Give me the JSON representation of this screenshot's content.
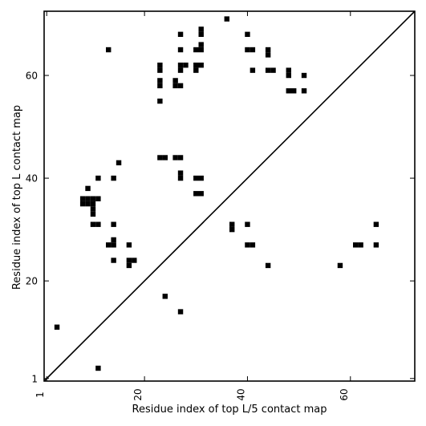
{
  "chart_data": {
    "type": "heatmap",
    "xlabel": "Residue index of top L/5 contact map",
    "ylabel": "Residue index of top L contact map",
    "xlim": [
      0.5,
      72.5
    ],
    "ylim": [
      0.5,
      72.5
    ],
    "xticks": [
      "1",
      "20",
      "40",
      "60"
    ],
    "yticks": [
      "1",
      "20",
      "40",
      "60"
    ],
    "grid": false,
    "diagonal": true,
    "cell_color": "#000000",
    "upper_left_contacts": [
      [
        36,
        71
      ],
      [
        27,
        68
      ],
      [
        31,
        68
      ],
      [
        31,
        69
      ],
      [
        40,
        68
      ],
      [
        13,
        65
      ],
      [
        27,
        65
      ],
      [
        30,
        65
      ],
      [
        31,
        65
      ],
      [
        31,
        66
      ],
      [
        40,
        65
      ],
      [
        41,
        65
      ],
      [
        44,
        64
      ],
      [
        44,
        65
      ],
      [
        23,
        61
      ],
      [
        23,
        62
      ],
      [
        27,
        61
      ],
      [
        27,
        62
      ],
      [
        28,
        62
      ],
      [
        30,
        61
      ],
      [
        30,
        62
      ],
      [
        31,
        62
      ],
      [
        41,
        61
      ],
      [
        44,
        61
      ],
      [
        45,
        61
      ],
      [
        48,
        60
      ],
      [
        48,
        61
      ],
      [
        51,
        60
      ],
      [
        23,
        58
      ],
      [
        23,
        59
      ],
      [
        26,
        58
      ],
      [
        26,
        59
      ],
      [
        27,
        58
      ],
      [
        48,
        57
      ],
      [
        49,
        57
      ],
      [
        51,
        57
      ],
      [
        23,
        55
      ],
      [
        23,
        44
      ],
      [
        24,
        44
      ],
      [
        26,
        44
      ],
      [
        27,
        44
      ],
      [
        15,
        43
      ],
      [
        11,
        40
      ],
      [
        14,
        40
      ],
      [
        27,
        40
      ],
      [
        27,
        41
      ],
      [
        30,
        40
      ],
      [
        31,
        40
      ],
      [
        30,
        37
      ],
      [
        31,
        37
      ],
      [
        9,
        38
      ],
      [
        8,
        35
      ],
      [
        8,
        36
      ],
      [
        9,
        35
      ],
      [
        9,
        36
      ],
      [
        10,
        33
      ],
      [
        10,
        34
      ],
      [
        10,
        35
      ],
      [
        10,
        36
      ],
      [
        11,
        36
      ]
    ],
    "lower_right_contacts": [
      [
        10,
        31
      ],
      [
        11,
        31
      ],
      [
        14,
        31
      ],
      [
        14,
        27
      ],
      [
        14,
        28
      ],
      [
        13,
        27
      ],
      [
        17,
        27
      ],
      [
        14,
        24
      ],
      [
        17,
        23
      ],
      [
        17,
        24
      ],
      [
        18,
        24
      ],
      [
        24,
        17
      ],
      [
        27,
        14
      ],
      [
        37,
        30
      ],
      [
        37,
        31
      ],
      [
        40,
        31
      ],
      [
        40,
        27
      ],
      [
        41,
        27
      ],
      [
        44,
        23
      ],
      [
        58,
        23
      ],
      [
        61,
        27
      ],
      [
        62,
        27
      ],
      [
        65,
        27
      ],
      [
        65,
        31
      ],
      [
        3,
        11
      ],
      [
        11,
        3
      ]
    ]
  }
}
